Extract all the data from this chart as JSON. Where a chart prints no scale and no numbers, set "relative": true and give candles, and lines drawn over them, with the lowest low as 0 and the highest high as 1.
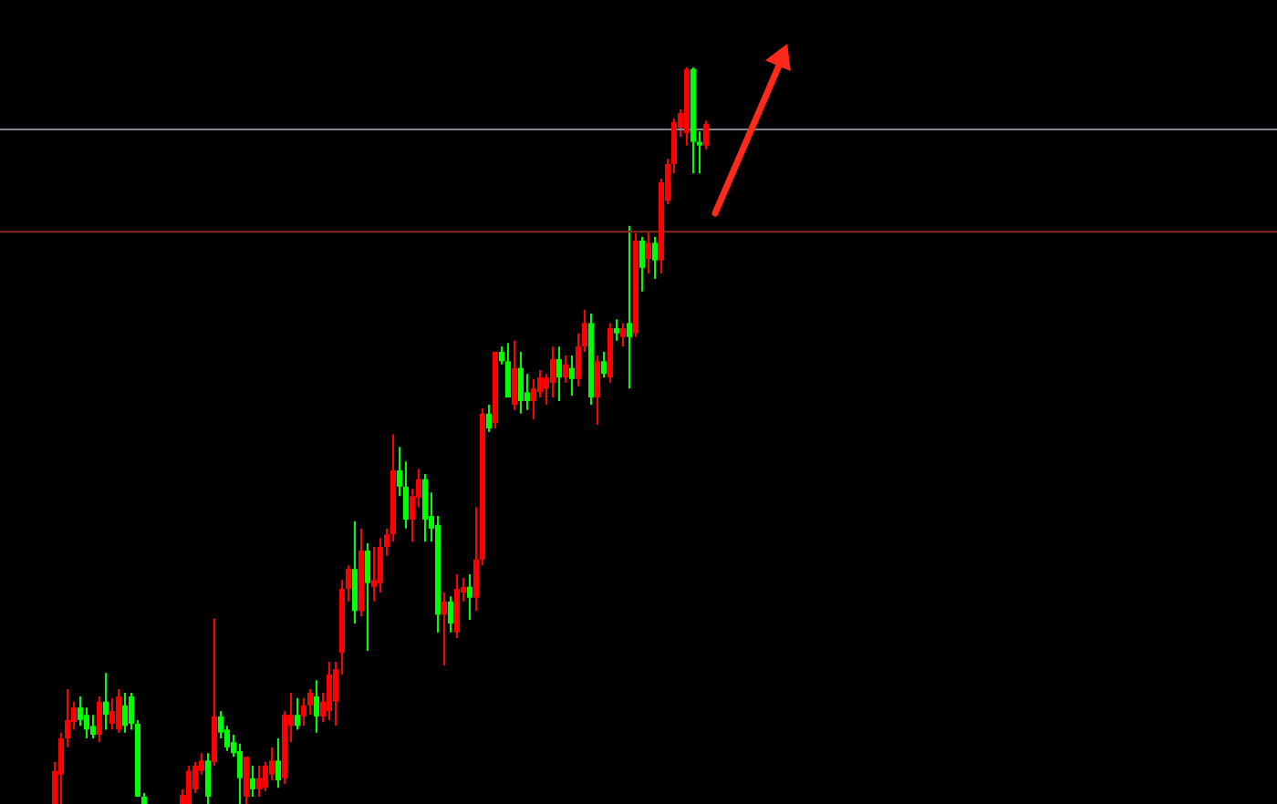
{
  "chart_data": {
    "type": "candlestick",
    "relative": true,
    "categories": [
      null,
      null,
      null,
      null,
      null,
      null,
      null,
      null,
      null,
      null,
      null,
      null,
      null,
      null,
      null,
      null,
      null,
      null,
      null,
      null,
      null,
      null,
      null,
      null,
      null,
      null,
      null,
      null,
      null,
      null,
      null,
      null,
      null,
      null,
      null,
      null,
      null,
      null,
      null,
      null,
      null,
      null,
      null,
      null,
      null,
      null,
      null,
      null,
      null,
      null,
      null,
      null,
      null,
      null,
      null,
      null,
      null,
      null,
      null,
      null,
      null,
      null,
      null,
      null,
      null,
      null,
      null,
      null,
      null,
      null,
      null,
      null,
      null,
      null,
      null,
      null,
      null,
      null,
      null,
      null,
      null,
      null,
      null,
      null,
      null,
      null,
      null,
      null,
      null,
      null,
      null,
      null,
      null,
      null,
      null,
      null,
      null,
      null,
      null,
      null,
      null,
      null,
      null
    ],
    "ohlc": [
      [
        0,
        0.057,
        0,
        0.045
      ],
      [
        0.04,
        0.097,
        0,
        0.089
      ],
      [
        0.089,
        0.156,
        0.077,
        0.114
      ],
      [
        0.111,
        0.139,
        0.101,
        0.131
      ],
      [
        0.131,
        0.146,
        0.106,
        0.114
      ],
      [
        0.121,
        0.131,
        0.089,
        0.101
      ],
      [
        0.106,
        0.121,
        0.089,
        0.094
      ],
      [
        0.094,
        0.146,
        0.084,
        0.139
      ],
      [
        0.139,
        0.178,
        0.101,
        0.121
      ],
      [
        0.109,
        0.144,
        0.101,
        0.126
      ],
      [
        0.101,
        0.156,
        0.097,
        0.146
      ],
      [
        0.134,
        0.151,
        0.097,
        0.106
      ],
      [
        0.146,
        0.151,
        0.101,
        0.109
      ],
      [
        0.109,
        0.114,
        0.01,
        0.01
      ],
      [
        0.01,
        0.015,
        0,
        0
      ],
      null,
      null,
      null,
      null,
      null,
      [
        0,
        0.02,
        0,
        0.012
      ],
      [
        0,
        0.052,
        0,
        0.045
      ],
      [
        0.02,
        0.057,
        0.015,
        0.052
      ],
      [
        0.045,
        0.069,
        0.04,
        0.059
      ],
      [
        0.059,
        0.069,
        0,
        0.01
      ],
      [
        0.057,
        0.252,
        0.052,
        0.119
      ],
      [
        0.119,
        0.126,
        0.089,
        0.097
      ],
      [
        0.101,
        0.106,
        0.072,
        0.077
      ],
      [
        0.084,
        0.094,
        0.064,
        0.069
      ],
      [
        0.072,
        0.082,
        0,
        0.035
      ],
      [
        0.01,
        0.064,
        0,
        0.064
      ],
      [
        0.035,
        0.052,
        0.01,
        0.02
      ],
      [
        0.02,
        0.052,
        0.01,
        0.035
      ],
      [
        0.022,
        0.057,
        0.017,
        0.052
      ],
      [
        0.04,
        0.077,
        0.032,
        0.059
      ],
      [
        0.059,
        0.089,
        0.022,
        0.032
      ],
      [
        0.035,
        0.126,
        0.027,
        0.121
      ],
      [
        0.106,
        0.151,
        0.084,
        0.121
      ],
      [
        0.121,
        0.144,
        0.101,
        0.106
      ],
      [
        0.119,
        0.144,
        0.106,
        0.134
      ],
      [
        0.134,
        0.156,
        0.121,
        0.151
      ],
      [
        0.146,
        0.168,
        0.097,
        0.119
      ],
      [
        0.119,
        0.151,
        0.111,
        0.139
      ],
      [
        0.126,
        0.193,
        0.114,
        0.176
      ],
      [
        0.139,
        0.193,
        0.106,
        0.183
      ],
      [
        0.205,
        0.304,
        0.176,
        0.292
      ],
      [
        0.292,
        0.324,
        0.275,
        0.319
      ],
      [
        0.319,
        0.384,
        0.245,
        0.262
      ],
      [
        0.262,
        0.374,
        0.255,
        0.344
      ],
      [
        0.344,
        0.354,
        0.208,
        0.3
      ],
      [
        0.295,
        0.349,
        0.275,
        0.304
      ],
      [
        0.3,
        0.361,
        0.287,
        0.349
      ],
      [
        0.349,
        0.374,
        0.337,
        0.366
      ],
      [
        0.366,
        0.502,
        0.356,
        0.453
      ],
      [
        0.453,
        0.485,
        0.418,
        0.431
      ],
      [
        0.431,
        0.465,
        0.374,
        0.386
      ],
      [
        0.386,
        0.428,
        0.356,
        0.418
      ],
      [
        0.416,
        0.455,
        0.403,
        0.441
      ],
      [
        0.441,
        0.448,
        0.356,
        0.386
      ],
      [
        0.391,
        0.423,
        0.356,
        0.374
      ],
      [
        0.379,
        0.391,
        0.233,
        0.257
      ],
      [
        0.257,
        0.287,
        0.188,
        0.275
      ],
      [
        0.275,
        0.282,
        0.233,
        0.245
      ],
      [
        0.233,
        0.312,
        0.225,
        0.292
      ],
      [
        0.287,
        0.307,
        0.275,
        0.295
      ],
      [
        0.295,
        0.312,
        0.25,
        0.28
      ],
      [
        0.28,
        0.403,
        0.262,
        0.332
      ],
      [
        0.332,
        0.537,
        0.324,
        0.53
      ],
      [
        0.53,
        0.542,
        0.505,
        0.51
      ],
      [
        0.517,
        0.614,
        0.51,
        0.614
      ],
      [
        0.614,
        0.621,
        0.597,
        0.601
      ],
      [
        0.601,
        0.626,
        0.552,
        0.552
      ],
      [
        0.542,
        0.629,
        0.535,
        0.592
      ],
      [
        0.592,
        0.614,
        0.53,
        0.547
      ],
      [
        0.559,
        0.584,
        0.535,
        0.547
      ],
      [
        0.547,
        0.577,
        0.522,
        0.564
      ],
      [
        0.559,
        0.589,
        0.552,
        0.579
      ],
      [
        0.564,
        0.584,
        0.542,
        0.579
      ],
      [
        0.572,
        0.621,
        0.552,
        0.604
      ],
      [
        0.604,
        0.621,
        0.547,
        0.579
      ],
      [
        0.579,
        0.609,
        0.572,
        0.597
      ],
      [
        0.592,
        0.609,
        0.554,
        0.577
      ],
      [
        0.577,
        0.639,
        0.567,
        0.621
      ],
      [
        0.621,
        0.671,
        0.614,
        0.653
      ],
      [
        0.653,
        0.666,
        0.542,
        0.552
      ],
      [
        0.552,
        0.609,
        0.515,
        0.601
      ],
      [
        0.601,
        0.614,
        0.579,
        0.584
      ],
      [
        0.579,
        0.653,
        0.572,
        0.646
      ],
      [
        0.646,
        0.658,
        0.629,
        0.639
      ],
      [
        0.634,
        0.653,
        0.621,
        0.646
      ],
      [
        0.653,
        0.785,
        0.564,
        0.634
      ],
      [
        0.639,
        0.775,
        0.634,
        0.765
      ],
      [
        0.765,
        0.77,
        0.696,
        0.728
      ],
      [
        0.74,
        0.777,
        0.72,
        0.762
      ],
      [
        0.762,
        0.77,
        0.713,
        0.738
      ],
      [
        0.738,
        0.849,
        0.72,
        0.844
      ],
      [
        0.819,
        0.876,
        0.814,
        0.869
      ],
      [
        0.869,
        0.931,
        0.856,
        0.926
      ],
      [
        0.918,
        0.943,
        0.906,
        0.938
      ],
      [
        0.911,
        1,
        0.894,
        0.998
      ],
      [
        0.998,
        1,
        0.856,
        0.899
      ],
      [
        0.899,
        0.913,
        0.856,
        0.894
      ],
      [
        0.894,
        0.928,
        0.889,
        0.923
      ]
    ],
    "colors": [
      "#ff0000",
      "#ff0000",
      "#ff0000",
      "#ff0000",
      "#00ff00",
      "#00ff00",
      "#00ff00",
      "#ff0000",
      "#00ff00",
      "#ff0000",
      "#ff0000",
      "#00ff00",
      "#00ff00",
      "#00ff00",
      "#00ff00",
      null,
      null,
      null,
      null,
      null,
      "#ff0000",
      "#ff0000",
      "#ff0000",
      "#ff0000",
      "#00ff00",
      "#ff0000",
      "#00ff00",
      "#00ff00",
      "#00ff00",
      "#00ff00",
      "#ff0000",
      "#00ff00",
      "#ff0000",
      "#ff0000",
      "#ff0000",
      "#00ff00",
      "#ff0000",
      "#ff0000",
      "#00ff00",
      "#ff0000",
      "#ff0000",
      "#00ff00",
      "#ff0000",
      "#ff0000",
      "#ff0000",
      "#ff0000",
      "#ff0000",
      "#00ff00",
      "#ff0000",
      "#00ff00",
      "#ff0000",
      "#ff0000",
      "#ff0000",
      "#ff0000",
      "#00ff00",
      "#00ff00",
      "#ff0000",
      "#ff0000",
      "#00ff00",
      "#00ff00",
      "#00ff00",
      "#ff0000",
      "#00ff00",
      "#ff0000",
      "#ff0000",
      "#00ff00",
      "#ff0000",
      "#ff0000",
      "#00ff00",
      "#ff0000",
      "#00ff00",
      "#00ff00",
      "#ff0000",
      "#00ff00",
      "#00ff00",
      "#ff0000",
      "#ff0000",
      "#ff0000",
      "#ff0000",
      "#00ff00",
      "#ff0000",
      "#00ff00",
      "#ff0000",
      "#ff0000",
      "#00ff00",
      "#ff0000",
      "#00ff00",
      "#ff0000",
      "#00ff00",
      "#ff0000",
      "#00ff00",
      "#ff0000",
      "#00ff00",
      "#ff0000",
      "#00ff00",
      "#ff0000",
      "#ff0000",
      "#ff0000",
      "#ff0000",
      "#ff0000",
      "#00ff00",
      "#00ff00",
      "#ff0000"
    ],
    "ref_lines": [
      {
        "axis": "y",
        "value": 0.916,
        "color": "#7f8790"
      },
      {
        "axis": "y",
        "value": 0.777,
        "color": "#8b2a1a"
      }
    ]
  }
}
